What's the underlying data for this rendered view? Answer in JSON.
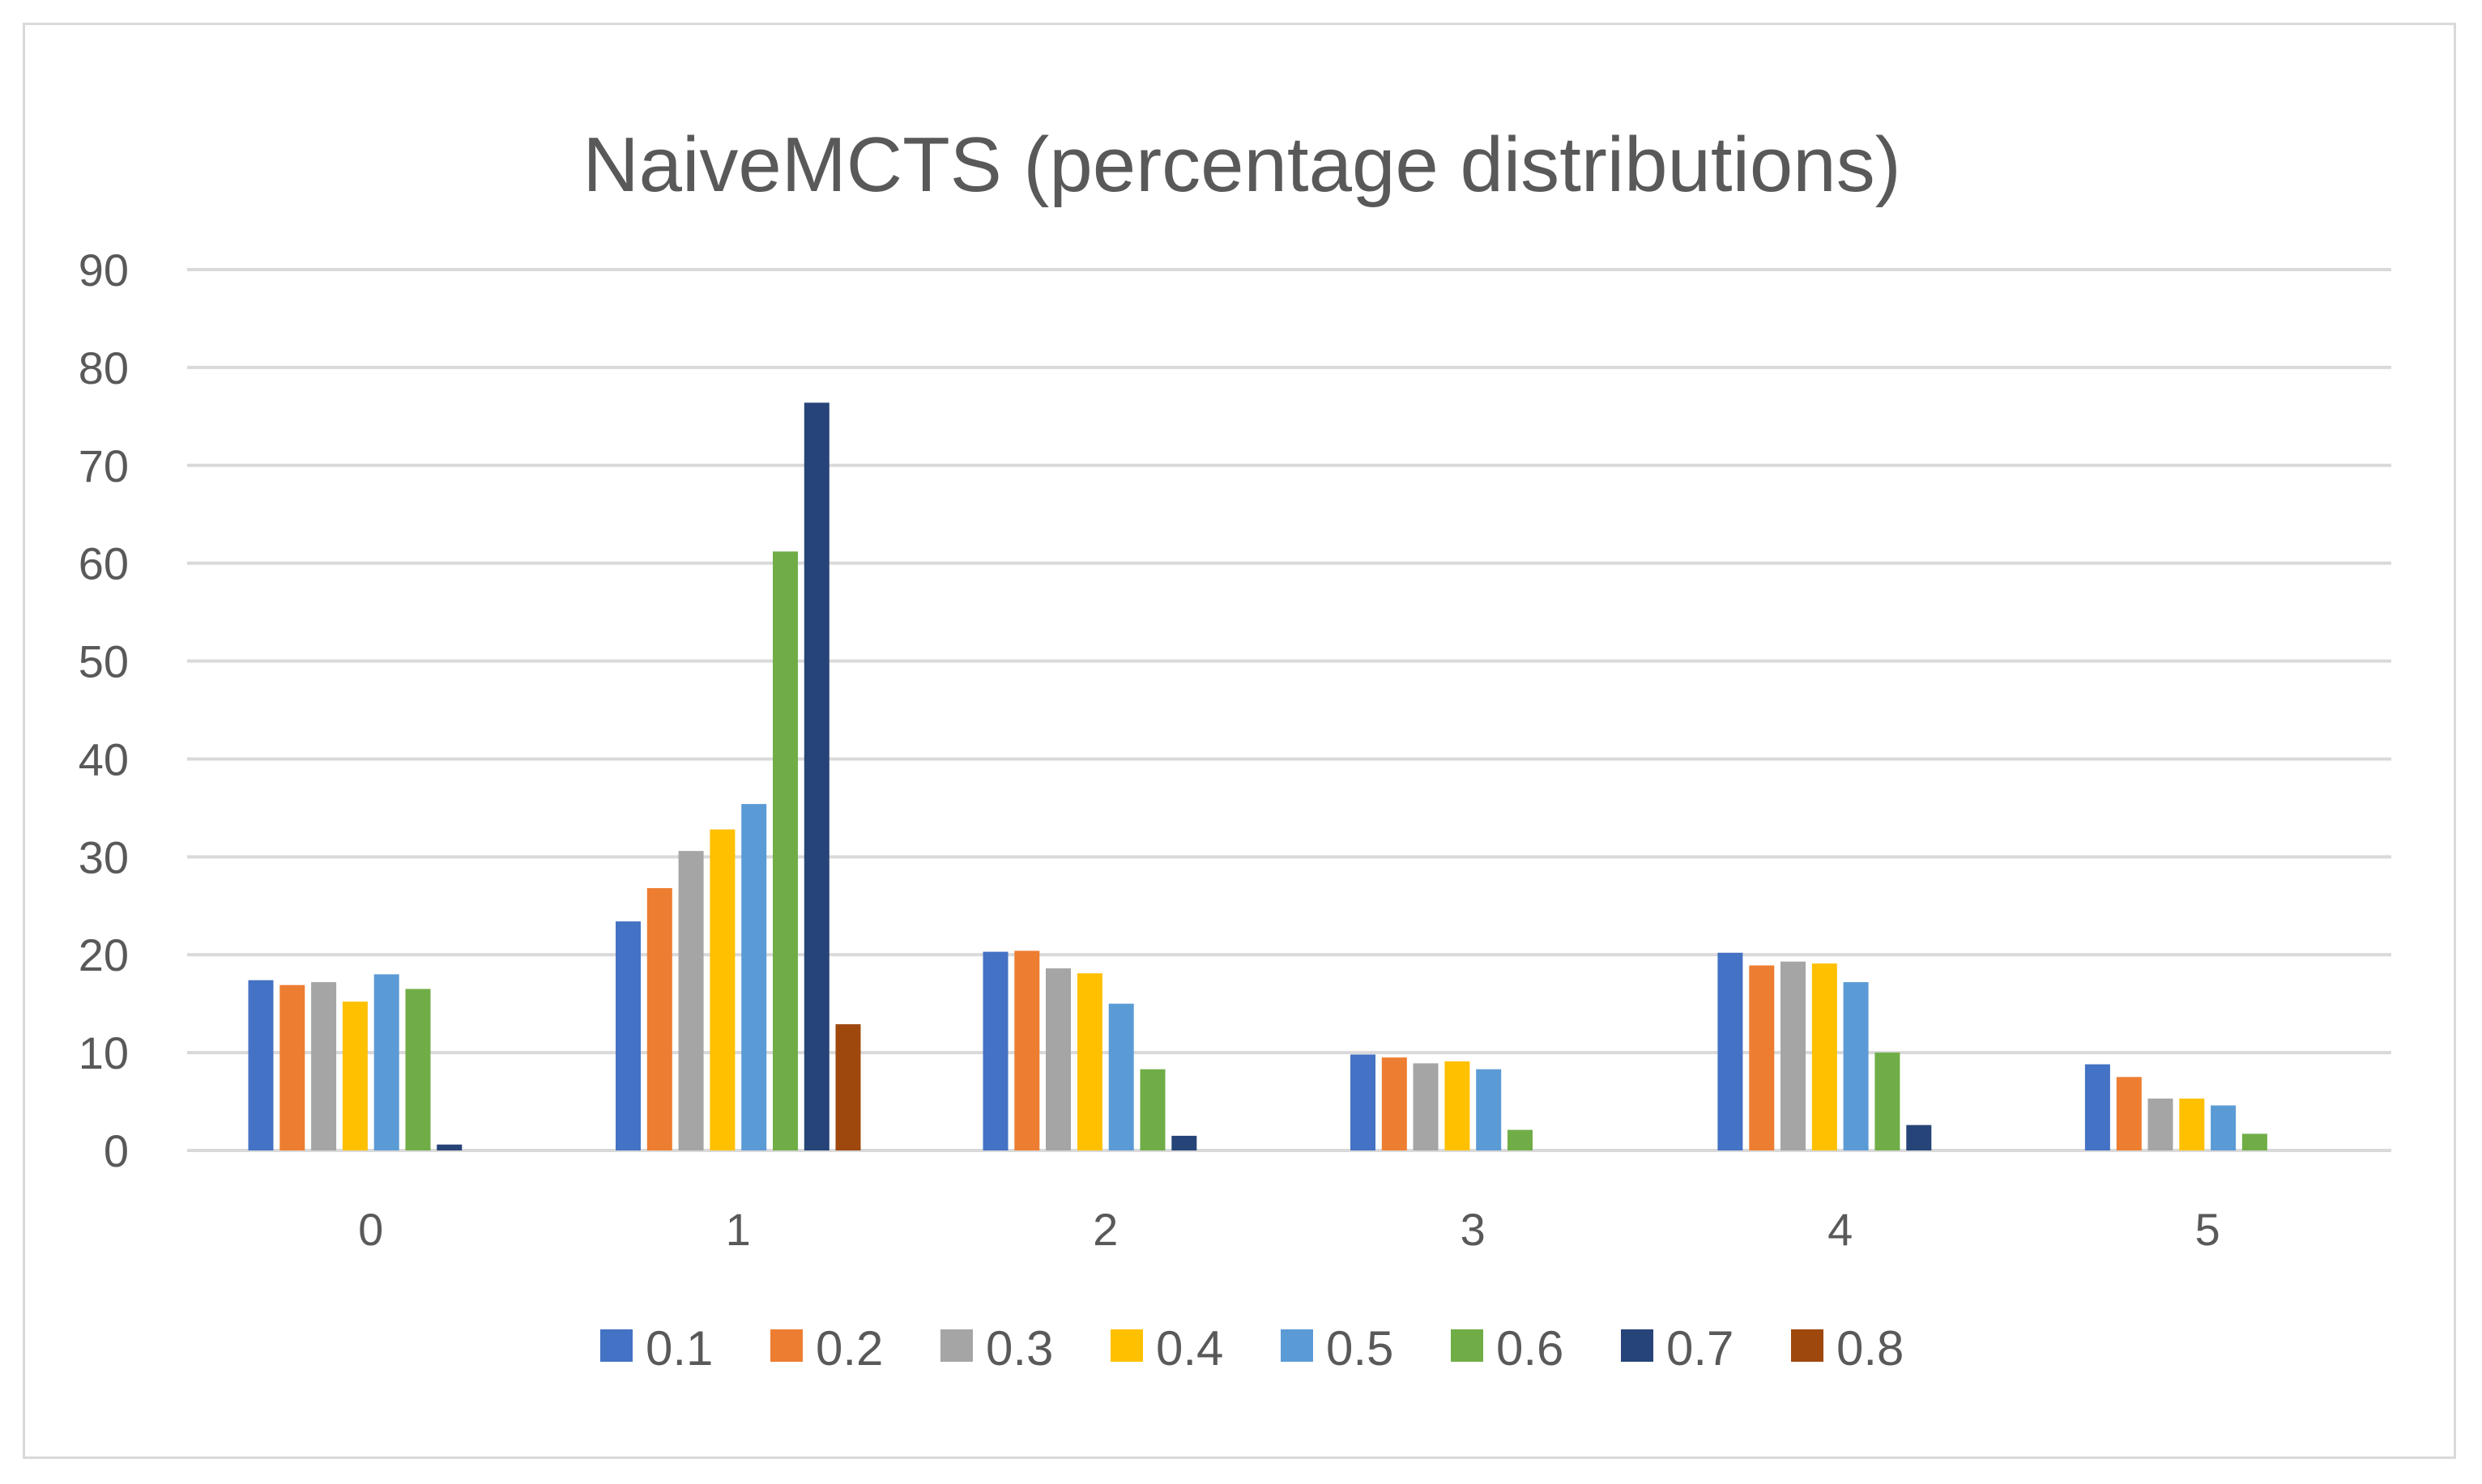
{
  "chart_data": {
    "type": "bar",
    "title": "NaiveMCTS (percentage distributions)",
    "xlabel": "",
    "ylabel": "",
    "ylim": [
      0,
      90
    ],
    "yticks": [
      "0",
      "10",
      "20",
      "30",
      "40",
      "50",
      "60",
      "70",
      "80",
      "90"
    ],
    "categories": [
      "0",
      "1",
      "2",
      "3",
      "4",
      "5"
    ],
    "grid": true,
    "legend_position": "bottom",
    "series": [
      {
        "name": "0.1",
        "color": "#4472C4",
        "values": [
          17.4,
          23.4,
          20.3,
          9.8,
          20.2,
          8.8
        ]
      },
      {
        "name": "0.2",
        "color": "#ED7D31",
        "values": [
          16.9,
          26.8,
          20.4,
          9.5,
          18.9,
          7.5
        ]
      },
      {
        "name": "0.3",
        "color": "#A5A5A5",
        "values": [
          17.2,
          30.6,
          18.6,
          8.9,
          19.3,
          5.3
        ]
      },
      {
        "name": "0.4",
        "color": "#FFC000",
        "values": [
          15.2,
          32.8,
          18.1,
          9.1,
          19.1,
          5.3
        ]
      },
      {
        "name": "0.5",
        "color": "#5B9BD5",
        "values": [
          18.0,
          35.4,
          15.0,
          8.3,
          17.2,
          4.6
        ]
      },
      {
        "name": "0.6",
        "color": "#70AD47",
        "values": [
          16.5,
          61.2,
          8.3,
          2.1,
          10.0,
          1.7
        ]
      },
      {
        "name": "0.7",
        "color": "#264478",
        "values": [
          0.6,
          76.4,
          1.5,
          0,
          2.6,
          0
        ]
      },
      {
        "name": "0.8",
        "color": "#9E480E",
        "values": [
          0,
          12.9,
          0,
          0,
          0,
          0
        ]
      }
    ]
  }
}
